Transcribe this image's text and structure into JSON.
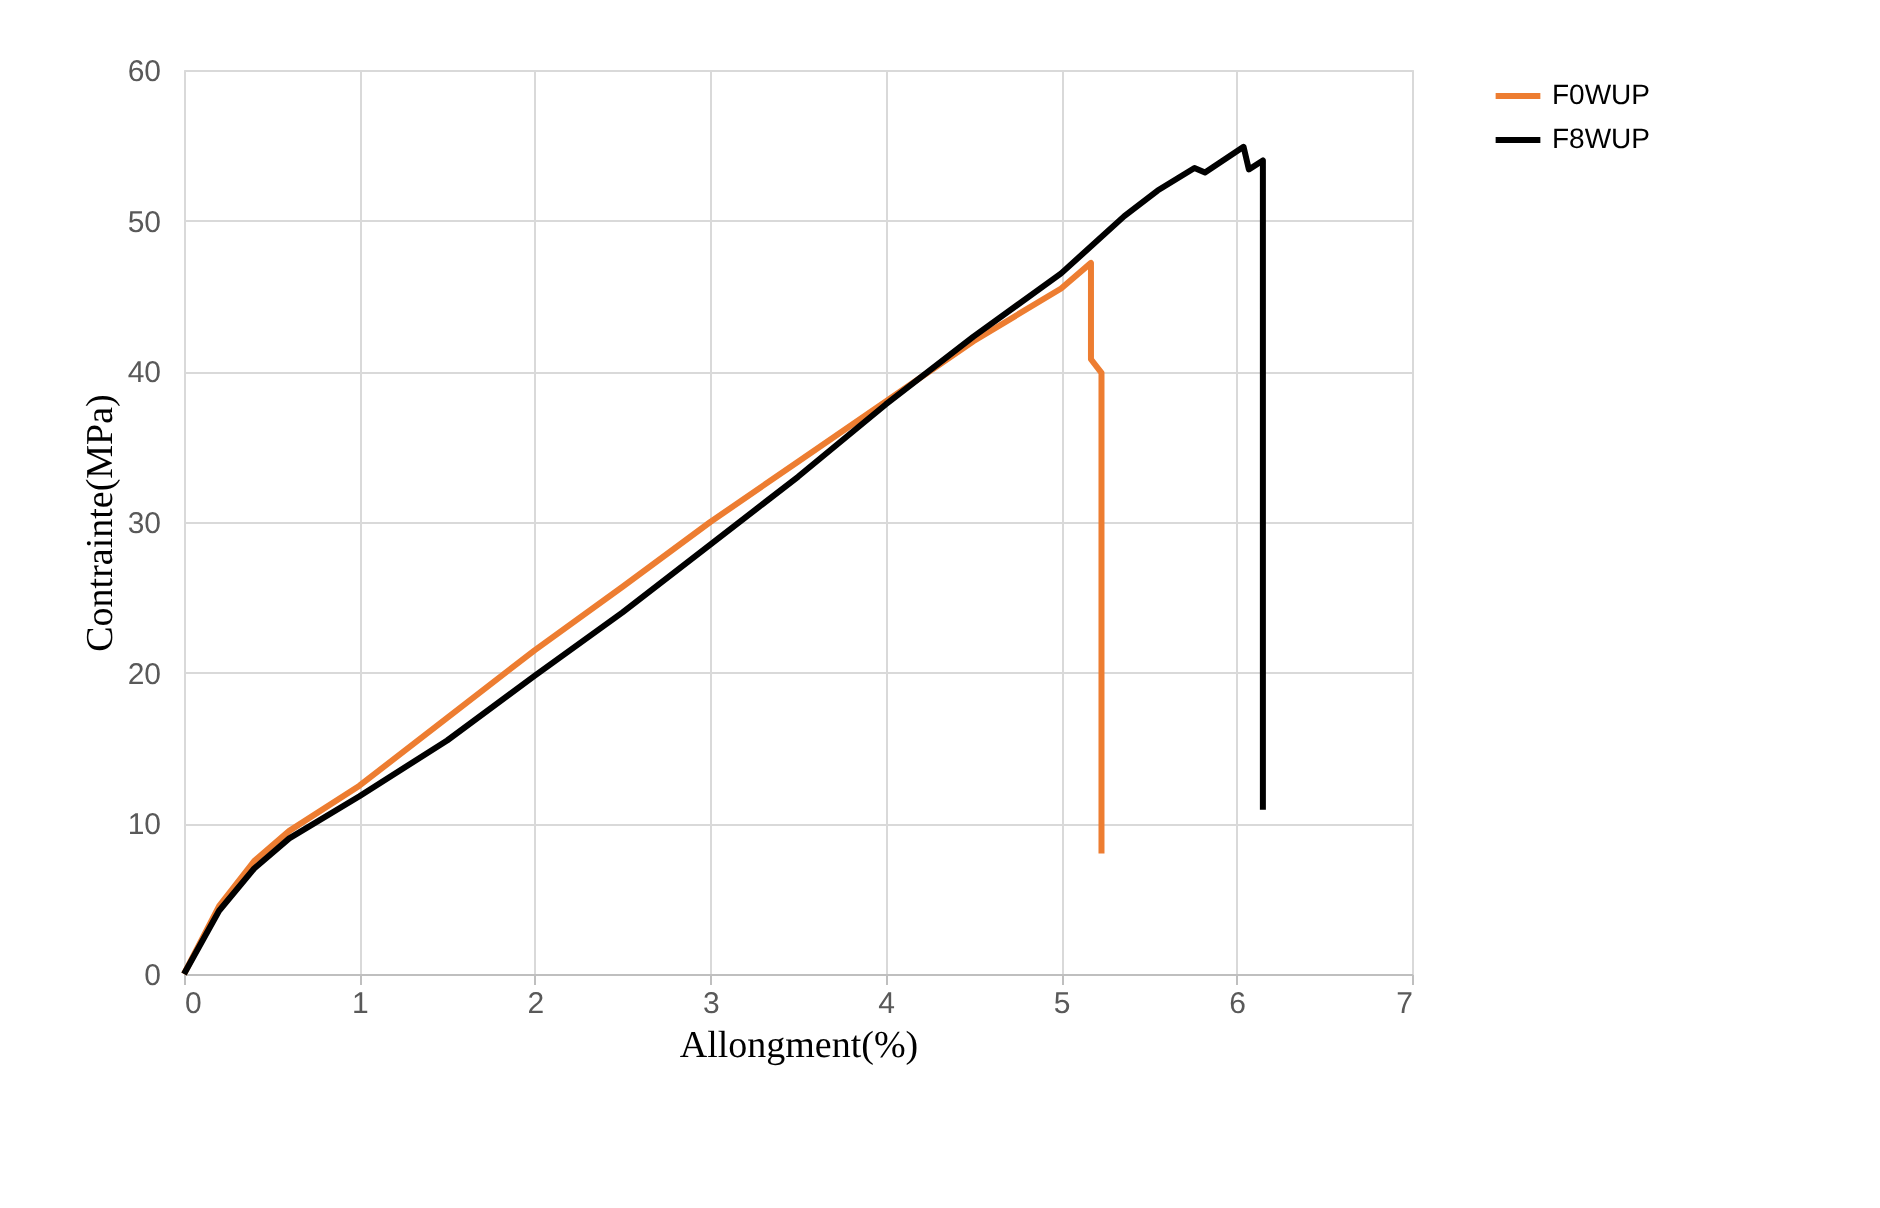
{
  "chart_data": {
    "type": "line",
    "xlabel": "Allongment(%)",
    "ylabel": "Contrainte(MPa)",
    "xlim": [
      0,
      7
    ],
    "ylim": [
      0,
      60
    ],
    "xticks": [
      0,
      1,
      2,
      3,
      4,
      5,
      6,
      7
    ],
    "yticks": [
      0,
      10,
      20,
      30,
      40,
      50,
      60
    ],
    "grid": true,
    "legend": "right",
    "marker": "none",
    "line_style": "solid",
    "series": [
      {
        "name": "F0WUP",
        "color": "#ed7d31",
        "x": [
          0,
          0.2,
          0.4,
          0.6,
          1,
          1.5,
          2,
          2.5,
          3,
          3.5,
          4,
          4.5,
          5,
          5.17,
          5.17,
          5.23,
          5.23
        ],
        "values": [
          0,
          4.5,
          7.5,
          9.5,
          12.5,
          17,
          21.5,
          25.7,
          30,
          34,
          38,
          42,
          45.5,
          47.2,
          40.8,
          39.9,
          8
        ]
      },
      {
        "name": "F8WUP",
        "color": "#000000",
        "x": [
          0,
          0.2,
          0.4,
          0.6,
          1,
          1.5,
          2,
          2.5,
          3,
          3.5,
          4,
          4.5,
          5,
          5.36,
          5.55,
          5.76,
          5.82,
          6.04,
          6.07,
          6.15,
          6.15
        ],
        "values": [
          0,
          4.2,
          7,
          9,
          11.8,
          15.5,
          19.8,
          24,
          28.5,
          33,
          37.8,
          42.3,
          46.5,
          50.3,
          52,
          53.5,
          53.2,
          54.9,
          53.4,
          54,
          10.9
        ]
      }
    ]
  }
}
